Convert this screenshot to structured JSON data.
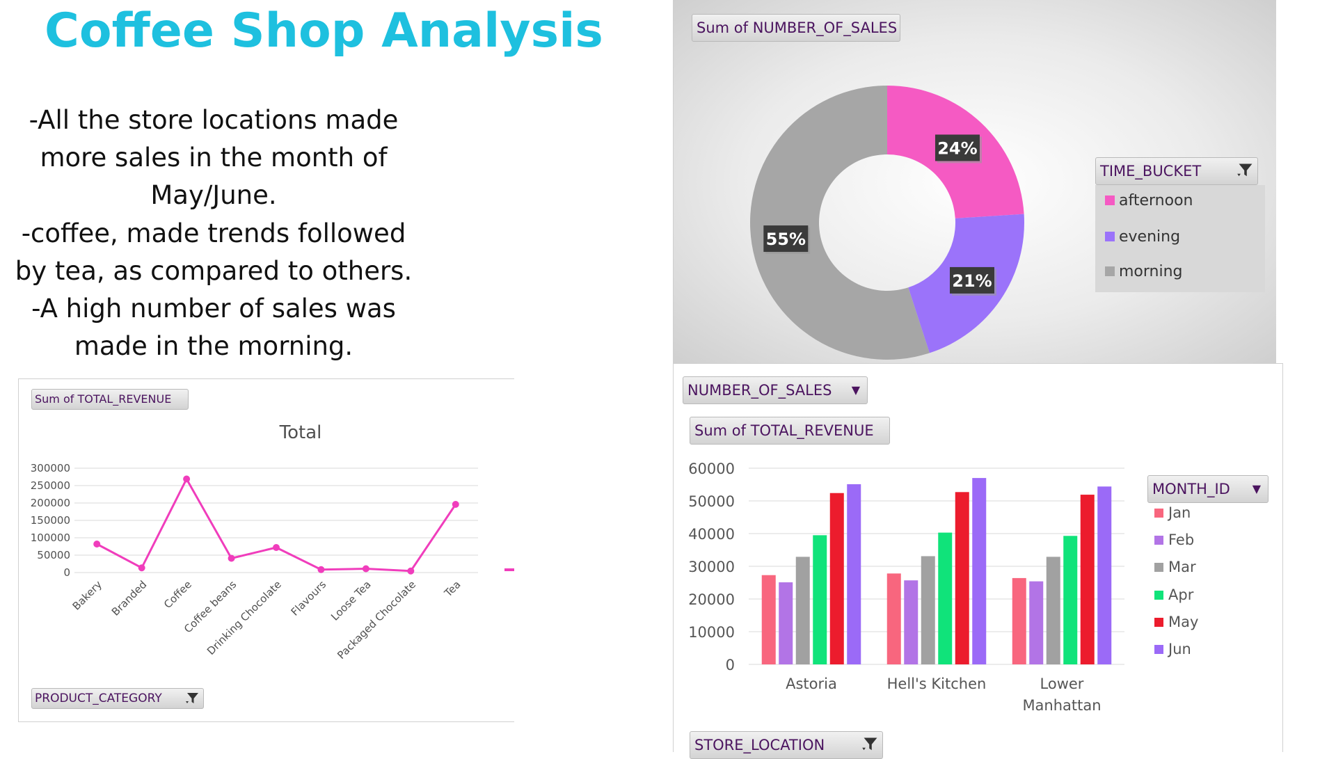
{
  "title": "Coffee Shop Analysis",
  "notes": [
    "-All the store locations made",
    "more sales in the month of",
    "May/June.",
    "-coffee, made trends followed",
    "by tea, as compared to others.",
    "-A high number of sales was",
    "made in the morning."
  ],
  "colors": {
    "title": "#1ec0df",
    "line": "#f03dbc",
    "afternoon": "#f55ac3",
    "evening": "#9b73fa",
    "morning": "#a6a6a6",
    "jan": "#f8667e",
    "feb": "#b274e6",
    "mar": "#a1a1a1",
    "apr": "#10e37a",
    "may": "#ec1c2d",
    "jun": "#9b6af7"
  },
  "line_panel": {
    "value_button": "Sum of TOTAL_REVENUE",
    "axis_button": "PRODUCT_CATEGORY",
    "filter_icon": "filter-icon"
  },
  "donut_panel": {
    "value_button": "Sum of NUMBER_OF_SALES",
    "legend_button": "TIME_BUCKET",
    "filter_icon": "filter-icon"
  },
  "bar_panel": {
    "filter_button": "NUMBER_OF_SALES",
    "value_button": "Sum of TOTAL_REVENUE",
    "legend_button": "MONTH_ID",
    "axis_button": "STORE_LOCATION",
    "dropdown_icon": "chevron-down-icon",
    "filter_icon": "filter-icon"
  },
  "chart_data": [
    {
      "type": "line",
      "title": "Total",
      "categories": [
        "Bakery",
        "Branded",
        "Coffee",
        "Coffee beans",
        "Drinking Chocolate",
        "Flavours",
        "Loose Tea",
        "Packaged Chocolate",
        "Tea"
      ],
      "values": [
        82000,
        13500,
        269000,
        41000,
        72000,
        8500,
        11000,
        4500,
        196000
      ],
      "ylim": [
        0,
        300000
      ],
      "yticks": [
        "300000",
        "250000",
        "200000",
        "150000",
        "100000",
        "50000",
        "0"
      ],
      "grid": true,
      "legend": "right (partially cropped)"
    },
    {
      "type": "pie",
      "donut": true,
      "categories": [
        "afternoon",
        "evening",
        "morning"
      ],
      "values": [
        24,
        21,
        55
      ],
      "labels": [
        "24%",
        "21%",
        "55%"
      ],
      "legend_title": "TIME_BUCKET",
      "legend": "right"
    },
    {
      "type": "bar",
      "categories": [
        "Astoria",
        "Hell's Kitchen",
        "Lower Manhattan"
      ],
      "category_lines": [
        [
          "Astoria"
        ],
        [
          "Hell's Kitchen"
        ],
        [
          "Lower",
          "Manhattan"
        ]
      ],
      "series": [
        {
          "name": "Jan",
          "values": [
            27300,
            27800,
            26400
          ]
        },
        {
          "name": "Feb",
          "values": [
            25100,
            25700,
            25400
          ]
        },
        {
          "name": "Mar",
          "values": [
            32900,
            33100,
            32900
          ]
        },
        {
          "name": "Apr",
          "values": [
            39500,
            40300,
            39300
          ]
        },
        {
          "name": "May",
          "values": [
            52400,
            52700,
            51900
          ]
        },
        {
          "name": "Jun",
          "values": [
            55100,
            57000,
            54400
          ]
        }
      ],
      "ylim": [
        0,
        60000
      ],
      "yticks": [
        "60000",
        "50000",
        "40000",
        "30000",
        "20000",
        "10000",
        "0"
      ],
      "grid": true,
      "legend_title": "MONTH_ID",
      "legend": "right"
    }
  ]
}
